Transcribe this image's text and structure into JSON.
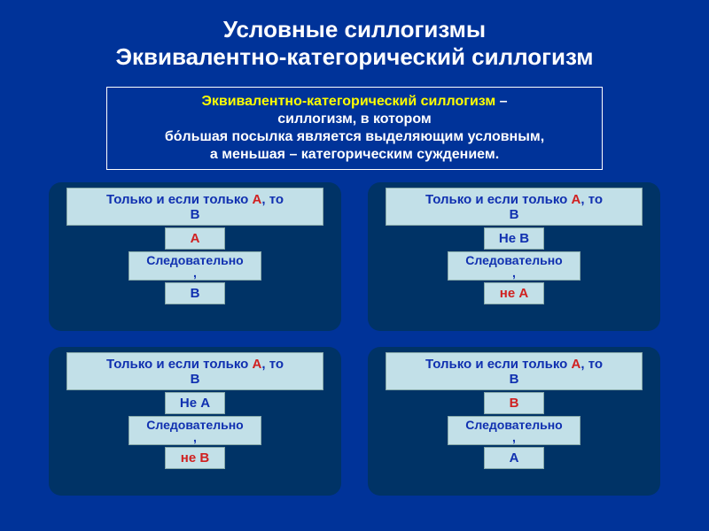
{
  "colors": {
    "page_bg": "#003399",
    "panel_bg": "#003366",
    "chip_bg": "#c2e0e8",
    "chip_border": "#8aa",
    "title_color": "#ffffff",
    "term_color": "#ffff00",
    "a_color": "#d02020",
    "b_color": "#1030b0"
  },
  "title": {
    "line1": "Условные силлогизмы",
    "line2": "Эквивалентно-категорический силлогизм"
  },
  "definition": {
    "term": "Эквивалентно-категорический силлогизм",
    "dash": " – ",
    "rest1": "силлогизм, в котором",
    "rest2": "бо́льшая посылка является выделяющим условным,",
    "rest3": "а меньшая – категорическим суждением."
  },
  "premise": {
    "prefix": "Только и если только ",
    "a": "А",
    "mid": ", то ",
    "b": "В"
  },
  "therefore": "Следовательно,",
  "panels": [
    {
      "mid_text": "А",
      "mid_color": "mid-red",
      "conc_text": "В",
      "conc_color": "mid-blue"
    },
    {
      "mid_text": "Не В",
      "mid_color": "mid-blue",
      "conc_text": "не А",
      "conc_color": "mid-red"
    },
    {
      "mid_text": "Не А",
      "mid_color": "mid-blue",
      "conc_text": "не В",
      "conc_color": "mid-red"
    },
    {
      "mid_text": "В",
      "mid_color": "mid-red",
      "conc_text": "А",
      "conc_color": "mid-blue"
    }
  ]
}
